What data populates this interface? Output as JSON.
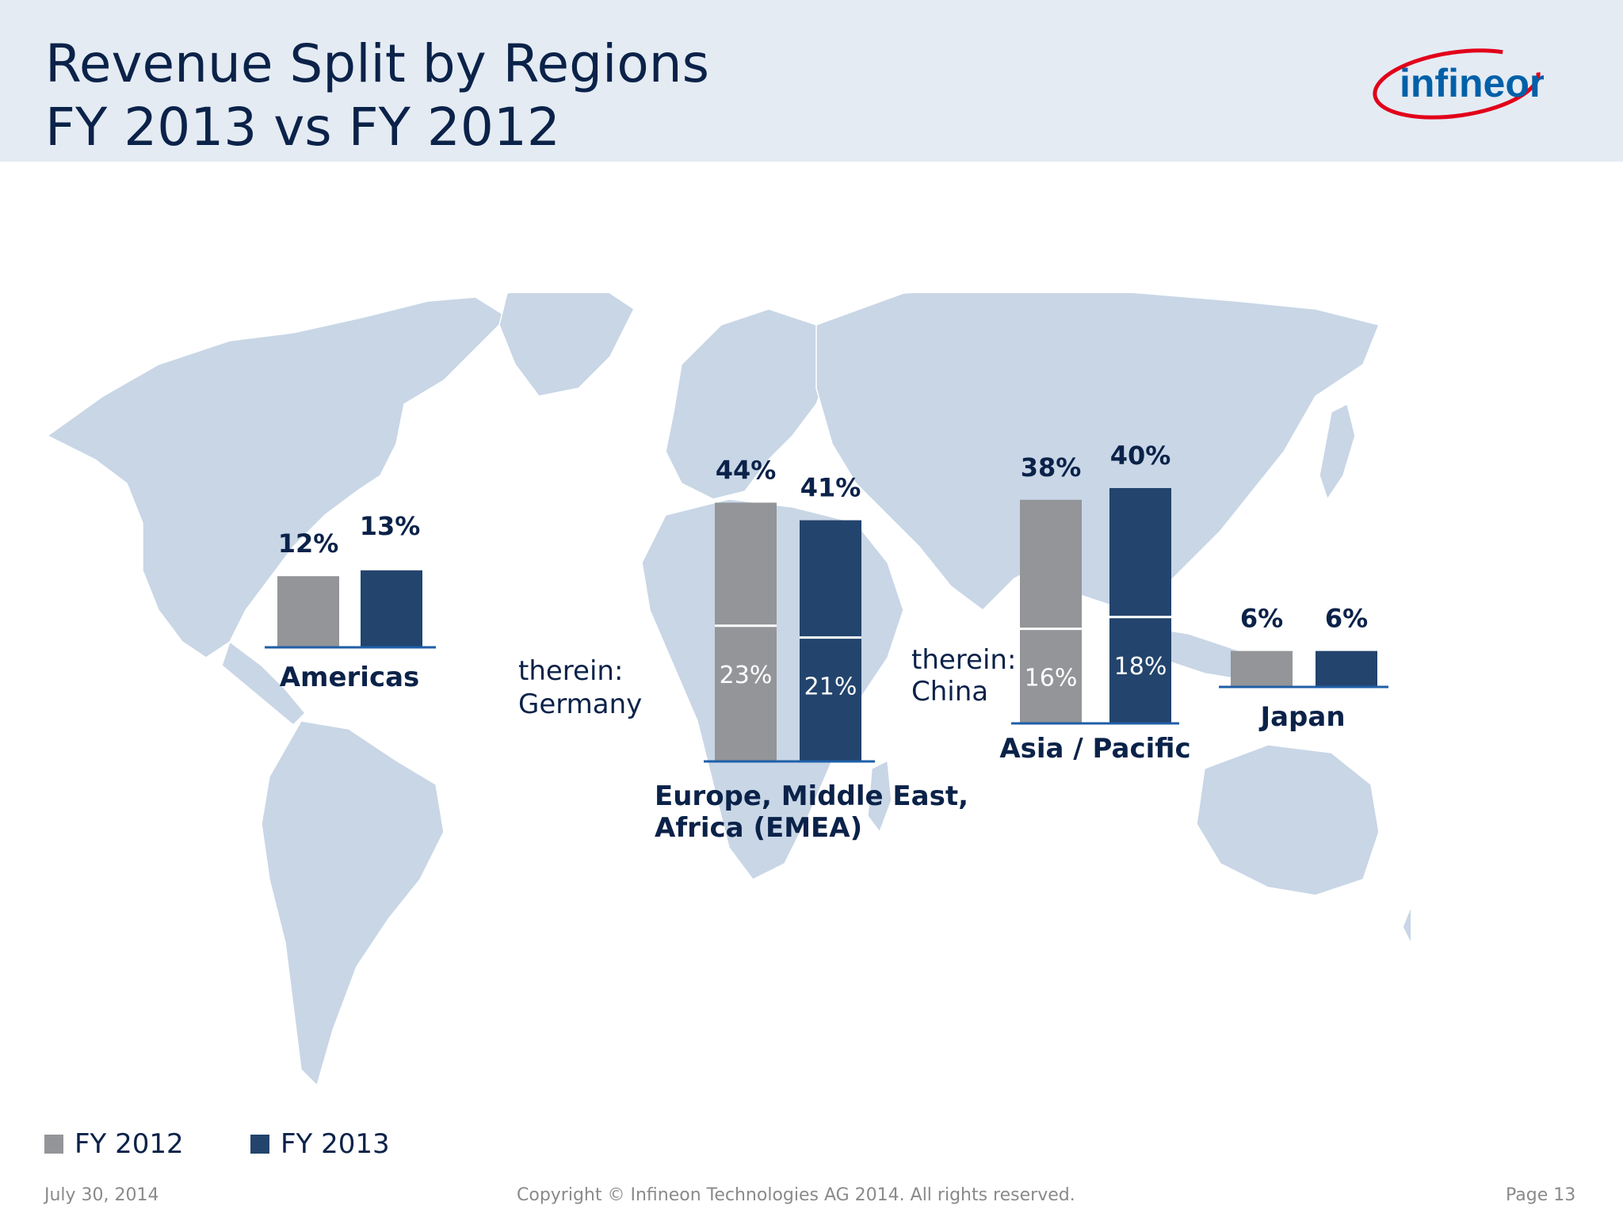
{
  "header": {
    "title_line1": "Revenue Split by Regions",
    "title_line2": "FY 2013 vs FY 2012",
    "logo_text": "infineon"
  },
  "legend": [
    {
      "label": "FY 2012",
      "color": "#939598"
    },
    {
      "label": "FY 2013",
      "color": "#23446d"
    }
  ],
  "footer": {
    "date": "July 30, 2014",
    "copyright": "Copyright © Infineon Technologies AG 2014. All rights reserved.",
    "page": "Page 13"
  },
  "chart_data": {
    "type": "bar",
    "title": "Revenue Split by Regions FY 2013 vs FY 2012",
    "unit": "%",
    "series": [
      {
        "name": "FY 2012",
        "color": "#939598"
      },
      {
        "name": "FY 2013",
        "color": "#23446d"
      }
    ],
    "regions": [
      {
        "name": "Americas",
        "values": [
          12,
          13
        ],
        "labels": [
          "12%",
          "13%"
        ]
      },
      {
        "name": "Europe, Middle East, Africa (EMEA)",
        "values": [
          44,
          41
        ],
        "labels": [
          "44%",
          "41%"
        ],
        "therein": {
          "label": "therein: Germany",
          "values": [
            23,
            21
          ],
          "labels": [
            "23%",
            "21%"
          ]
        }
      },
      {
        "name": "Asia / Pacific",
        "values": [
          38,
          40
        ],
        "labels": [
          "38%",
          "40%"
        ],
        "therein": {
          "label": "therein: China",
          "values": [
            16,
            18
          ],
          "labels": [
            "16%",
            "18%"
          ]
        }
      },
      {
        "name": "Japan",
        "values": [
          6,
          6
        ],
        "labels": [
          "6%",
          "6%"
        ]
      }
    ],
    "annotations": {
      "emea_therein_line1": "therein:",
      "emea_therein_line2": "Germany",
      "asia_therein_line1": "therein:",
      "asia_therein_line2": "China",
      "emea_name_line1": "Europe, Middle East,",
      "emea_name_line2": "Africa (EMEA)"
    }
  }
}
